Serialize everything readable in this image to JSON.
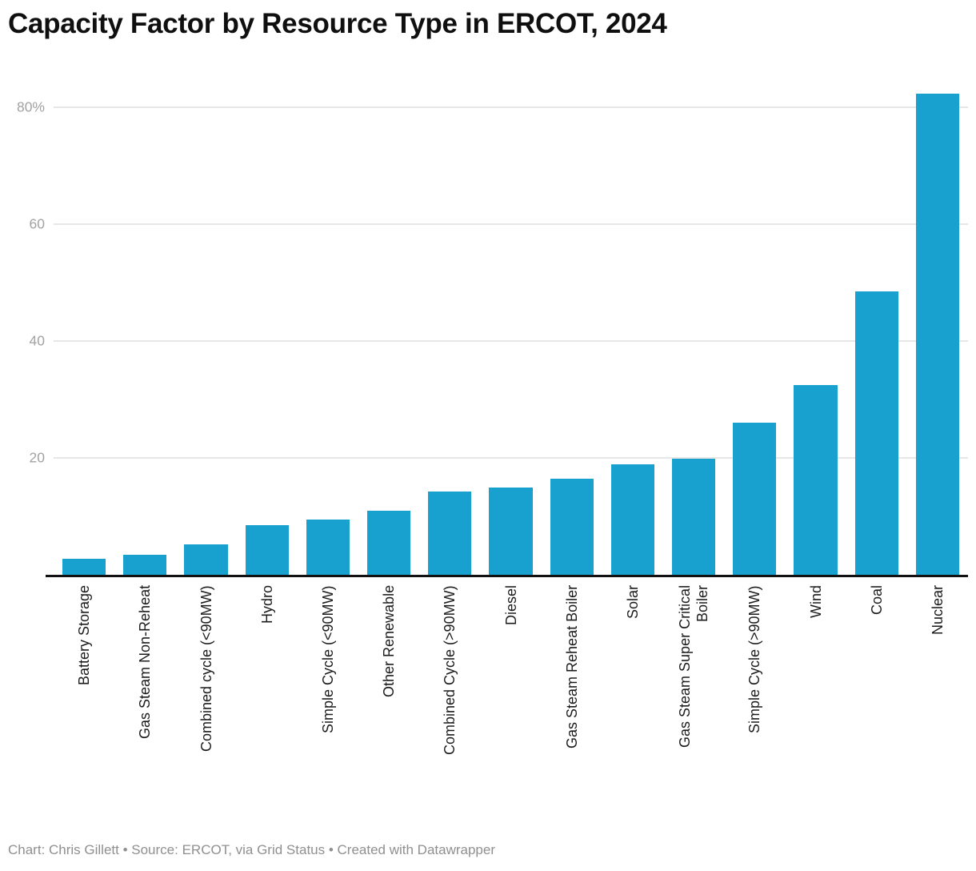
{
  "title": "Capacity Factor by Resource Type in ERCOT, 2024",
  "footer": {
    "text": "Chart: Chris Gillett • Source: ERCOT, via Grid Status • Created with Datawrapper"
  },
  "colors": {
    "bar": "#18a1ce",
    "title": "#0f0f0f",
    "x_label": "#1b1b1b",
    "y_tick": "#a2a2a2",
    "gridline": "#e7e7e7",
    "baseline": "#121212",
    "footer": "#8f8f8f",
    "background": "#ffffff"
  },
  "chart_data": {
    "type": "bar",
    "title": "Capacity Factor by Resource Type in ERCOT, 2024",
    "categories": [
      "Battery Storage",
      "Gas Steam Non-Reheat",
      "Combined cycle (<90MW)",
      "Hydro",
      "Simple Cycle (<90MW)",
      "Other Renewable",
      "Combined Cycle (>90MW)",
      "Diesel",
      "Gas Steam Reheat Boiler",
      "Solar",
      "Gas Steam Super Critical\nBoiler",
      "Simple Cycle (>90MW)",
      "Wind",
      "Coal",
      "Nuclear"
    ],
    "values": [
      2.8,
      3.5,
      5.2,
      8.5,
      9.5,
      10.9,
      14.2,
      15.0,
      16.4,
      18.9,
      19.9,
      26.1,
      32.5,
      48.5,
      82.3
    ],
    "unit": "%",
    "xlabel": "",
    "ylabel": "",
    "ylim": [
      0,
      83.3
    ],
    "yticks": [
      {
        "value": 20,
        "label": "20"
      },
      {
        "value": 40,
        "label": "40"
      },
      {
        "value": 60,
        "label": "60"
      },
      {
        "value": 80,
        "label": "80%"
      }
    ],
    "grid": true,
    "legend": false,
    "bar_color": "#18a1ce",
    "x_label_rotation": -90
  }
}
